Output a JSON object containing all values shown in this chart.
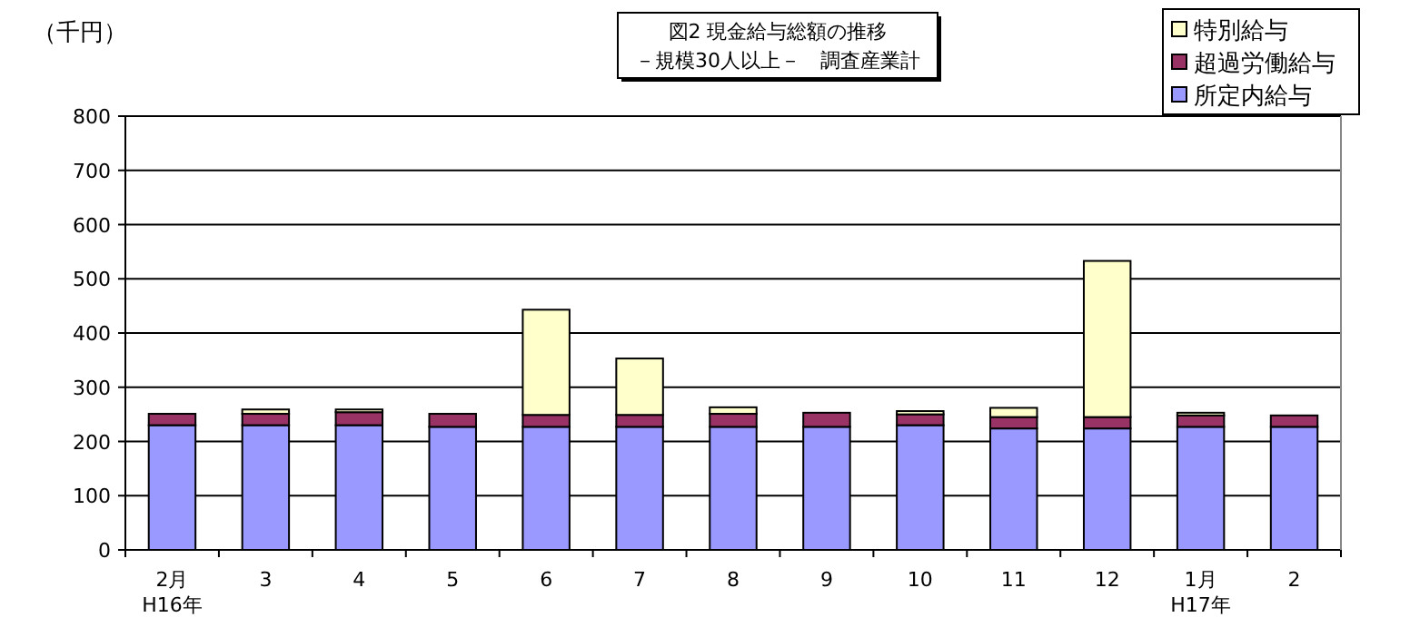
{
  "chart_data": {
    "type": "bar",
    "stacked": true,
    "title": "図2 現金給与総額の推移",
    "subtitle": "－規模30人以上－　調査産業計",
    "ylabel": "（千円）",
    "categories": [
      "2月\nH16年",
      "3",
      "4",
      "5",
      "6",
      "7",
      "8",
      "9",
      "10",
      "11",
      "12",
      "1月\nH17年",
      "2"
    ],
    "series": [
      {
        "name": "所定内給与",
        "color": "#9999ff",
        "values": [
          230,
          230,
          230,
          227,
          227,
          227,
          227,
          227,
          230,
          224,
          224,
          227,
          227
        ]
      },
      {
        "name": "超過労働給与",
        "color": "#993366",
        "values": [
          21,
          21,
          24,
          24,
          22,
          22,
          24,
          26,
          20,
          21,
          21,
          21,
          21
        ]
      },
      {
        "name": "特別給与",
        "color": "#ffffcc",
        "values": [
          0,
          8,
          5,
          0,
          194,
          104,
          12,
          0,
          6,
          17,
          288,
          5,
          0
        ]
      }
    ],
    "ylim": [
      0,
      800
    ],
    "yticks": [
      0,
      100,
      200,
      300,
      400,
      500,
      600,
      700,
      800
    ],
    "grid": "y",
    "legend": "top right"
  }
}
